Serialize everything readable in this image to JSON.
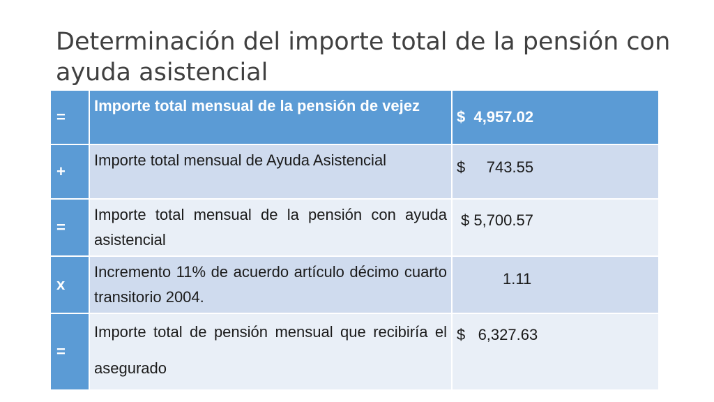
{
  "title": "Determinación del importe total de la pensión con ayuda asistencial",
  "table": {
    "rows": [
      {
        "op": "=",
        "description": "Importe total mensual de la pensión de vejez",
        "amount": "$  4,957.02"
      },
      {
        "op": "+",
        "description": "Importe total mensual de Ayuda Asistencial",
        "amount": "$     743.55"
      },
      {
        "op": "=",
        "description": "Importe total mensual de la pensión con ayuda asistencial",
        "amount": "$ 5,700.57"
      },
      {
        "op": "x",
        "description": "Incremento 11% de acuerdo artículo décimo cuarto transitorio 2004.",
        "amount": "1.11"
      },
      {
        "op": "=",
        "description": "Importe total de pensión mensual que recibiría el asegurado",
        "amount": "$   6,327.63"
      }
    ]
  },
  "colors": {
    "header_bg": "#5b9bd5",
    "row_dark": "#cfdbee",
    "row_light": "#e9eff7",
    "title_text": "#404040"
  }
}
